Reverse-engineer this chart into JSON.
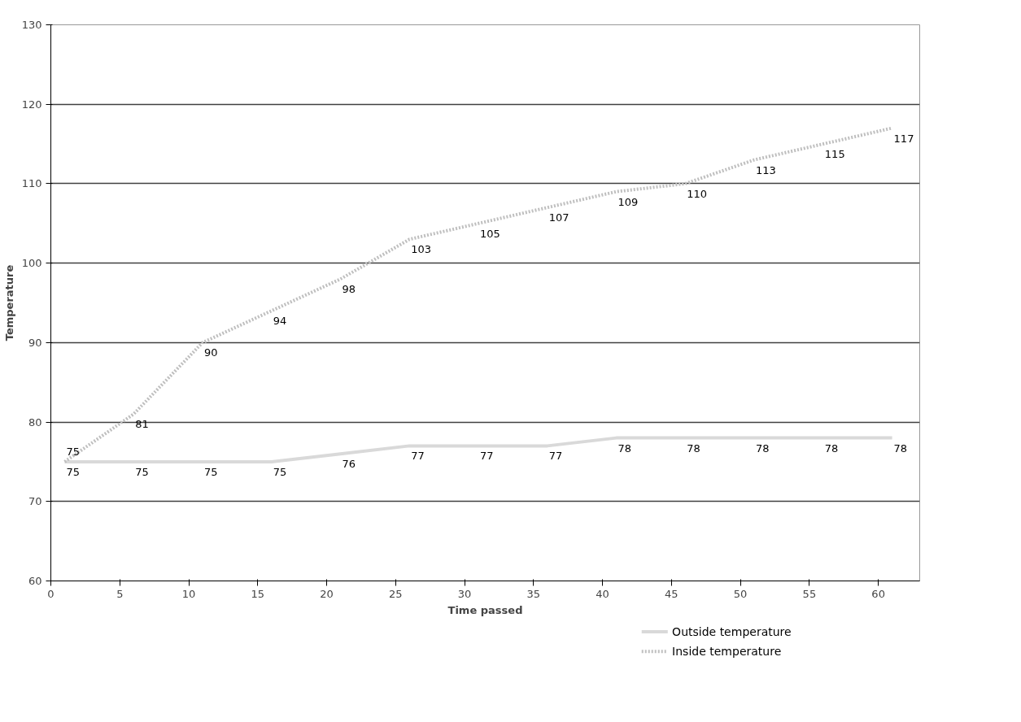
{
  "chart_data": {
    "type": "line",
    "xlabel": "Time passed",
    "ylabel": "Temperature",
    "x": [
      1,
      6,
      11,
      16,
      21,
      26,
      31,
      36,
      41,
      46,
      51,
      56,
      61
    ],
    "series": [
      {
        "name": "Outside temperature",
        "color": "#d9d9d9",
        "line_style": "solid",
        "values": [
          75,
          75,
          75,
          75,
          76,
          77,
          77,
          77,
          78,
          78,
          78,
          78,
          78
        ]
      },
      {
        "name": "Inside temperature",
        "color": "#bfbfbf",
        "line_style": "dotted",
        "values": [
          75,
          81,
          90,
          94,
          98,
          103,
          105,
          107,
          109,
          110,
          113,
          115,
          117
        ]
      }
    ],
    "xlim": [
      0,
      63
    ],
    "xticks": [
      0,
      5,
      10,
      15,
      20,
      25,
      30,
      35,
      40,
      45,
      50,
      55,
      60
    ],
    "ylim": [
      60,
      130
    ],
    "yticks": [
      60,
      70,
      80,
      90,
      100,
      110,
      120,
      130
    ],
    "grid": "y",
    "legend": "bottom right",
    "data_labels": true,
    "marker": "none"
  }
}
